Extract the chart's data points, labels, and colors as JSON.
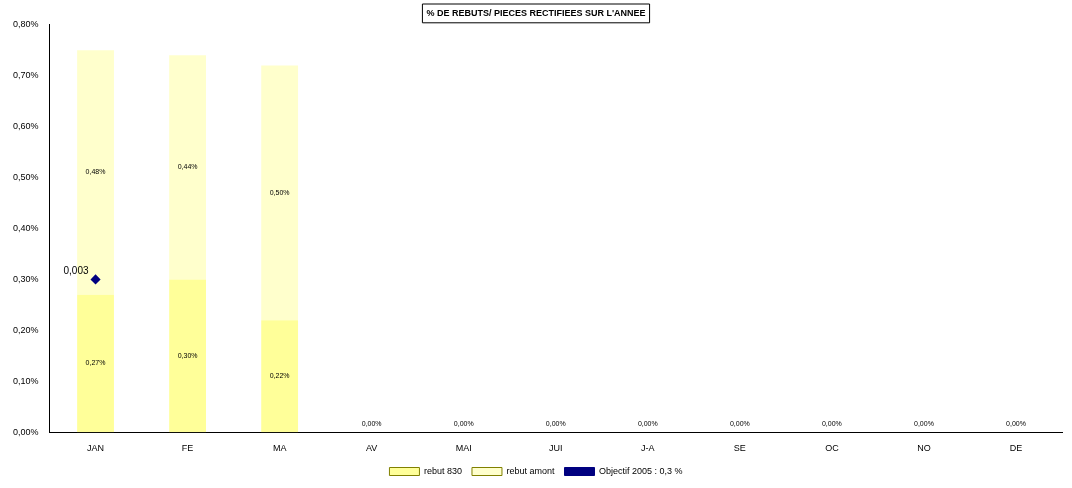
{
  "chart_data": {
    "type": "bar",
    "title": "% DE REBUTS/ PIECES RECTIFIEES SUR L'ANNEE",
    "stacked": true,
    "legend": "bottom",
    "categories": [
      "JAN",
      "FE",
      "MA",
      "AV",
      "MAI",
      "JUI",
      "J-A",
      "SE",
      "OC",
      "NO",
      "DE"
    ],
    "series": [
      {
        "name": "rebut 830",
        "color": "#ffff99",
        "values": [
          0.27,
          0.3,
          0.22,
          0,
          0,
          0,
          0,
          0,
          0,
          0,
          0
        ],
        "value_labels": [
          "0,27%",
          "0,30%",
          "0,22%",
          null,
          null,
          null,
          null,
          null,
          null,
          null,
          null
        ]
      },
      {
        "name": "rebut amont",
        "color": "#ffffcc",
        "values": [
          0.48,
          0.44,
          0.5,
          0,
          0,
          0,
          0,
          0,
          0,
          0,
          0
        ],
        "value_labels": [
          "0,48%",
          "0,44%",
          "0,50%",
          "0,00%",
          "0,00%",
          "0,00%",
          "0,00%",
          "0,00%",
          "0,00%",
          "0,00%",
          "0,00%"
        ]
      },
      {
        "name": "Objectif 2005 : 0,3 %",
        "type": "line",
        "color": "#000080",
        "marker": "diamond",
        "values": [
          0.3,
          null,
          null,
          null,
          null,
          null,
          null,
          null,
          null,
          null,
          null
        ]
      }
    ],
    "annotations": [
      {
        "text": "0,003",
        "x": "JAN",
        "y": 0.3
      }
    ],
    "ylim": [
      0,
      0.8
    ],
    "yticks": [
      {
        "value": 0,
        "label": "0,00%"
      },
      {
        "value": 0.1,
        "label": "0,10%"
      },
      {
        "value": 0.2,
        "label": "0,20%"
      },
      {
        "value": 0.3,
        "label": "0,30%"
      },
      {
        "value": 0.4,
        "label": "0,40%"
      },
      {
        "value": 0.5,
        "label": "0,50%"
      },
      {
        "value": 0.6,
        "label": "0,60%"
      },
      {
        "value": 0.7,
        "label": "0,70%"
      },
      {
        "value": 0.8,
        "label": "0,80%"
      }
    ]
  }
}
